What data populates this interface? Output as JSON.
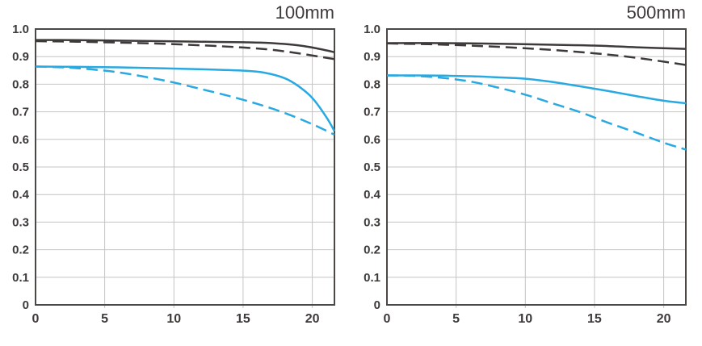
{
  "styles": {
    "background": "#ffffff",
    "axis_color": "#4c4846",
    "grid_color": "#c6c4c2",
    "label_color": "#3e3a39",
    "black_line_color": "#3e3a39",
    "blue_line_color": "#29a9e2"
  },
  "chart_data": [
    {
      "type": "line",
      "title": "100mm",
      "xlabel": "",
      "ylabel": "",
      "xlim": [
        0,
        21.6
      ],
      "ylim": [
        0,
        1.0
      ],
      "x_ticks": [
        0,
        5,
        10,
        15,
        20
      ],
      "x_tick_labels": [
        "0",
        "5",
        "10",
        "15",
        "20"
      ],
      "y_ticks": [
        0,
        0.1,
        0.2,
        0.3,
        0.4,
        0.5,
        0.6,
        0.7,
        0.8,
        0.9,
        1.0
      ],
      "y_tick_labels": [
        "0",
        "0.1",
        "0.2",
        "0.3",
        "0.4",
        "0.5",
        "0.6",
        "0.7",
        "0.8",
        "0.9",
        "1.0"
      ],
      "grid": true,
      "legend": "none",
      "series": [
        {
          "name": "black-solid",
          "color": "#3e3a39",
          "style": "solid",
          "points": [
            [
              0,
              0.96
            ],
            [
              3,
              0.96
            ],
            [
              6,
              0.958
            ],
            [
              9,
              0.956
            ],
            [
              12,
              0.954
            ],
            [
              15,
              0.952
            ],
            [
              17,
              0.949
            ],
            [
              19,
              0.941
            ],
            [
              20.5,
              0.928
            ],
            [
              21.6,
              0.916
            ]
          ]
        },
        {
          "name": "black-dashed",
          "color": "#3e3a39",
          "style": "dashed",
          "points": [
            [
              0,
              0.956
            ],
            [
              3,
              0.954
            ],
            [
              6,
              0.951
            ],
            [
              9,
              0.947
            ],
            [
              12,
              0.941
            ],
            [
              15,
              0.933
            ],
            [
              17,
              0.925
            ],
            [
              19,
              0.912
            ],
            [
              21.6,
              0.891
            ]
          ]
        },
        {
          "name": "blue-solid",
          "color": "#29a9e2",
          "style": "solid",
          "points": [
            [
              0,
              0.864
            ],
            [
              3,
              0.863
            ],
            [
              6,
              0.861
            ],
            [
              9,
              0.858
            ],
            [
              12,
              0.854
            ],
            [
              15,
              0.849
            ],
            [
              16.5,
              0.842
            ],
            [
              18,
              0.822
            ],
            [
              19,
              0.793
            ],
            [
              20,
              0.75
            ],
            [
              21,
              0.682
            ],
            [
              21.6,
              0.63
            ]
          ]
        },
        {
          "name": "blue-dashed",
          "color": "#29a9e2",
          "style": "dashed",
          "points": [
            [
              0,
              0.864
            ],
            [
              2,
              0.861
            ],
            [
              4,
              0.854
            ],
            [
              6,
              0.843
            ],
            [
              8,
              0.826
            ],
            [
              10,
              0.806
            ],
            [
              12,
              0.782
            ],
            [
              14,
              0.757
            ],
            [
              16,
              0.729
            ],
            [
              18,
              0.696
            ],
            [
              20,
              0.655
            ],
            [
              21.6,
              0.617
            ]
          ]
        }
      ]
    },
    {
      "type": "line",
      "title": "500mm",
      "xlabel": "",
      "ylabel": "",
      "xlim": [
        0,
        21.6
      ],
      "ylim": [
        0,
        1.0
      ],
      "x_ticks": [
        0,
        5,
        10,
        15,
        20
      ],
      "x_tick_labels": [
        "0",
        "5",
        "10",
        "15",
        "20"
      ],
      "y_ticks": [
        0,
        0.1,
        0.2,
        0.3,
        0.4,
        0.5,
        0.6,
        0.7,
        0.8,
        0.9,
        1.0
      ],
      "y_tick_labels": [
        "0",
        "0.1",
        "0.2",
        "0.3",
        "0.4",
        "0.5",
        "0.6",
        "0.7",
        "0.8",
        "0.9",
        "1.0"
      ],
      "grid": true,
      "legend": "none",
      "series": [
        {
          "name": "black-solid",
          "color": "#3e3a39",
          "style": "solid",
          "points": [
            [
              0,
              0.949
            ],
            [
              3,
              0.949
            ],
            [
              6,
              0.948
            ],
            [
              9,
              0.946
            ],
            [
              12,
              0.943
            ],
            [
              15,
              0.94
            ],
            [
              18,
              0.934
            ],
            [
              21.6,
              0.928
            ]
          ]
        },
        {
          "name": "black-dashed",
          "color": "#3e3a39",
          "style": "dashed",
          "points": [
            [
              0,
              0.948
            ],
            [
              3,
              0.945
            ],
            [
              6,
              0.94
            ],
            [
              9,
              0.933
            ],
            [
              12,
              0.924
            ],
            [
              15,
              0.912
            ],
            [
              18,
              0.896
            ],
            [
              21.6,
              0.87
            ]
          ]
        },
        {
          "name": "blue-solid",
          "color": "#29a9e2",
          "style": "solid",
          "points": [
            [
              0,
              0.832
            ],
            [
              2,
              0.832
            ],
            [
              4,
              0.831
            ],
            [
              6,
              0.829
            ],
            [
              8,
              0.825
            ],
            [
              10,
              0.82
            ],
            [
              12,
              0.808
            ],
            [
              14,
              0.792
            ],
            [
              16,
              0.775
            ],
            [
              18,
              0.757
            ],
            [
              20,
              0.74
            ],
            [
              21.6,
              0.731
            ]
          ]
        },
        {
          "name": "blue-dashed",
          "color": "#29a9e2",
          "style": "dashed",
          "points": [
            [
              0,
              0.832
            ],
            [
              2,
              0.83
            ],
            [
              4,
              0.823
            ],
            [
              6,
              0.81
            ],
            [
              8,
              0.788
            ],
            [
              10,
              0.762
            ],
            [
              12,
              0.73
            ],
            [
              14,
              0.698
            ],
            [
              16,
              0.66
            ],
            [
              18,
              0.625
            ],
            [
              20,
              0.588
            ],
            [
              21.6,
              0.563
            ]
          ]
        }
      ]
    }
  ]
}
